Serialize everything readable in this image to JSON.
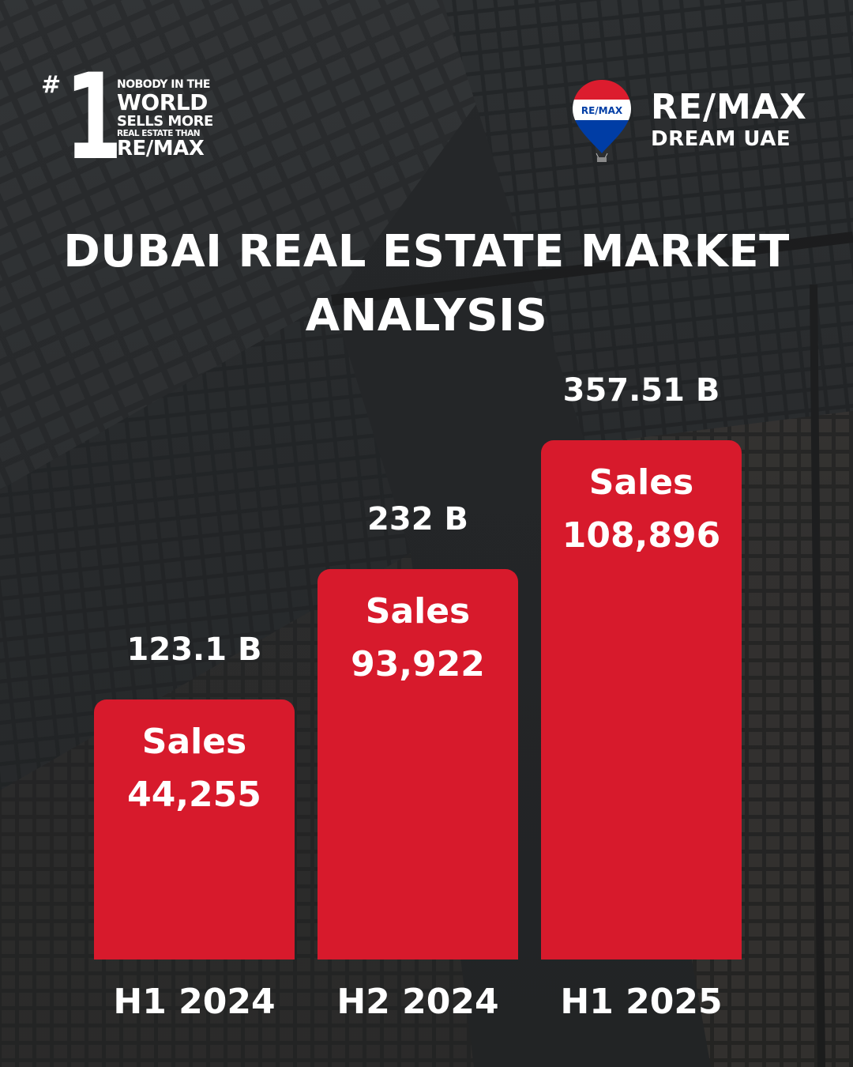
{
  "badge": {
    "hash": "#",
    "number": "1",
    "line1": "NOBODY IN THE",
    "line2": "WORLD",
    "line3": "SELLS MORE",
    "line4": "REAL ESTATE THAN",
    "line5": "RE/MAX"
  },
  "brand": {
    "balloon_text": "RE/MAX",
    "name": "RE/MAX",
    "subtitle": "DREAM UAE",
    "colors": {
      "red": "#dc1c2e",
      "blue": "#003da5",
      "white": "#ffffff"
    }
  },
  "title": {
    "line1": "DUBAI REAL ESTATE MARKET",
    "line2": "ANALYSIS"
  },
  "chart_data": {
    "type": "bar",
    "title": "DUBAI REAL ESTATE MARKET ANALYSIS",
    "categories": [
      "H1 2024",
      "H2 2024",
      "H1 2025"
    ],
    "series": [
      {
        "values": [
          123.1,
          232,
          357.51
        ]
      }
    ],
    "value_labels": [
      "123.1 B",
      "232 B",
      "357.51 B"
    ],
    "sales_label": "Sales",
    "sales_counts": [
      "44,255",
      "93,922",
      "108,896"
    ],
    "bar_color": "#d71a2c",
    "grid": false,
    "axes_visible": false
  }
}
